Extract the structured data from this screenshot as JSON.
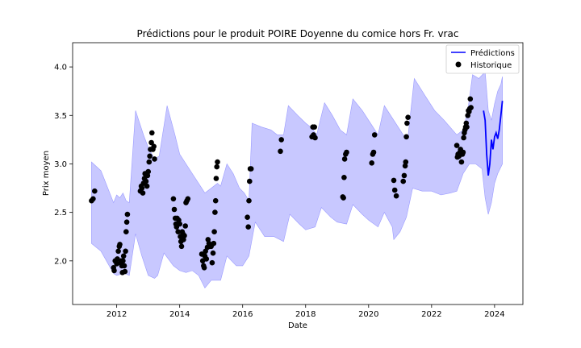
{
  "chart_data": {
    "type": "line",
    "title": "Prédictions pour le produit POIRE Doyenne du comice hors Fr. vrac",
    "xlabel": "Date",
    "ylabel": "Prix moyen",
    "xlim": [
      2010.6,
      2024.9
    ],
    "ylim": [
      1.55,
      4.25
    ],
    "x_ticks": [
      2012,
      2014,
      2016,
      2018,
      2020,
      2022,
      2024
    ],
    "y_ticks": [
      2.0,
      2.5,
      3.0,
      3.5,
      4.0
    ],
    "legend_position": "top-right",
    "colors": {
      "prediction": "#0000ff",
      "band": "#c8c8ff",
      "band_edge": "#9a9aff",
      "historique": "#000000"
    },
    "series": [
      {
        "name": "Prédictions",
        "kind": "line",
        "points": [
          [
            2023.65,
            3.55
          ],
          [
            2023.7,
            3.45
          ],
          [
            2023.75,
            3.1
          ],
          [
            2023.8,
            2.88
          ],
          [
            2023.85,
            3.0
          ],
          [
            2023.9,
            3.25
          ],
          [
            2023.95,
            3.15
          ],
          [
            2024.0,
            3.28
          ],
          [
            2024.05,
            3.32
          ],
          [
            2024.1,
            3.26
          ],
          [
            2024.15,
            3.35
          ],
          [
            2024.2,
            3.5
          ],
          [
            2024.25,
            3.65
          ]
        ]
      },
      {
        "name": "Historique",
        "kind": "scatter",
        "points": [
          [
            2011.2,
            2.62
          ],
          [
            2011.25,
            2.64
          ],
          [
            2011.3,
            2.72
          ],
          [
            2011.9,
            1.93
          ],
          [
            2011.92,
            1.9
          ],
          [
            2011.95,
            2.0
          ],
          [
            2012.0,
            1.97
          ],
          [
            2012.02,
            2.02
          ],
          [
            2012.05,
            2.1
          ],
          [
            2012.08,
            2.15
          ],
          [
            2012.1,
            2.17
          ],
          [
            2012.12,
            1.98
          ],
          [
            2012.14,
            2.0
          ],
          [
            2012.16,
            1.95
          ],
          [
            2012.18,
            1.88
          ],
          [
            2012.2,
            2.0
          ],
          [
            2012.22,
            2.05
          ],
          [
            2012.24,
            1.95
          ],
          [
            2012.26,
            1.89
          ],
          [
            2012.28,
            2.1
          ],
          [
            2012.3,
            2.3
          ],
          [
            2012.32,
            2.4
          ],
          [
            2012.34,
            2.48
          ],
          [
            2012.75,
            2.72
          ],
          [
            2012.78,
            2.77
          ],
          [
            2012.8,
            2.75
          ],
          [
            2012.83,
            2.7
          ],
          [
            2012.85,
            2.8
          ],
          [
            2012.88,
            2.85
          ],
          [
            2012.9,
            2.9
          ],
          [
            2012.93,
            2.82
          ],
          [
            2012.96,
            2.77
          ],
          [
            2012.98,
            2.88
          ],
          [
            2013.0,
            2.92
          ],
          [
            2013.03,
            3.02
          ],
          [
            2013.05,
            3.08
          ],
          [
            2013.07,
            3.15
          ],
          [
            2013.1,
            3.22
          ],
          [
            2013.12,
            3.32
          ],
          [
            2013.15,
            3.15
          ],
          [
            2013.18,
            3.18
          ],
          [
            2013.2,
            3.05
          ],
          [
            2013.8,
            2.64
          ],
          [
            2013.83,
            2.53
          ],
          [
            2013.86,
            2.44
          ],
          [
            2013.88,
            2.38
          ],
          [
            2013.9,
            2.35
          ],
          [
            2013.92,
            2.44
          ],
          [
            2013.95,
            2.3
          ],
          [
            2013.97,
            2.42
          ],
          [
            2014.0,
            2.38
          ],
          [
            2014.02,
            2.25
          ],
          [
            2014.04,
            2.2
          ],
          [
            2014.06,
            2.15
          ],
          [
            2014.08,
            2.3
          ],
          [
            2014.1,
            2.28
          ],
          [
            2014.12,
            2.22
          ],
          [
            2014.15,
            2.26
          ],
          [
            2014.18,
            2.36
          ],
          [
            2014.2,
            2.6
          ],
          [
            2014.23,
            2.62
          ],
          [
            2014.26,
            2.64
          ],
          [
            2014.7,
            2.07
          ],
          [
            2014.73,
            2.0
          ],
          [
            2014.76,
            1.95
          ],
          [
            2014.78,
            1.93
          ],
          [
            2014.8,
            2.05
          ],
          [
            2014.82,
            2.1
          ],
          [
            2014.85,
            2.02
          ],
          [
            2014.88,
            2.14
          ],
          [
            2014.9,
            2.22
          ],
          [
            2014.93,
            2.18
          ],
          [
            2014.96,
            2.15
          ],
          [
            2015.0,
            2.15
          ],
          [
            2015.03,
            1.98
          ],
          [
            2015.06,
            2.08
          ],
          [
            2015.08,
            2.18
          ],
          [
            2015.12,
            2.5
          ],
          [
            2015.14,
            2.62
          ],
          [
            2015.16,
            2.85
          ],
          [
            2015.18,
            2.97
          ],
          [
            2015.2,
            3.02
          ],
          [
            2015.1,
            2.3
          ],
          [
            2016.15,
            2.45
          ],
          [
            2016.18,
            2.35
          ],
          [
            2016.2,
            2.62
          ],
          [
            2016.22,
            2.82
          ],
          [
            2016.24,
            2.95
          ],
          [
            2016.27,
            2.95
          ],
          [
            2017.2,
            3.13
          ],
          [
            2017.23,
            3.25
          ],
          [
            2018.2,
            3.28
          ],
          [
            2018.23,
            3.38
          ],
          [
            2018.25,
            3.3
          ],
          [
            2018.28,
            3.38
          ],
          [
            2018.3,
            3.27
          ],
          [
            2019.18,
            2.66
          ],
          [
            2019.2,
            2.65
          ],
          [
            2019.22,
            2.86
          ],
          [
            2019.24,
            3.05
          ],
          [
            2019.27,
            3.1
          ],
          [
            2019.3,
            3.12
          ],
          [
            2020.1,
            3.01
          ],
          [
            2020.13,
            3.1
          ],
          [
            2020.16,
            3.12
          ],
          [
            2020.19,
            3.3
          ],
          [
            2020.8,
            2.83
          ],
          [
            2020.83,
            2.73
          ],
          [
            2020.88,
            2.67
          ],
          [
            2021.1,
            2.82
          ],
          [
            2021.13,
            2.88
          ],
          [
            2021.16,
            2.98
          ],
          [
            2021.18,
            3.02
          ],
          [
            2021.2,
            3.28
          ],
          [
            2021.22,
            3.42
          ],
          [
            2021.25,
            3.48
          ],
          [
            2022.8,
            3.19
          ],
          [
            2022.82,
            3.07
          ],
          [
            2022.84,
            3.1
          ],
          [
            2022.87,
            3.08
          ],
          [
            2022.9,
            3.12
          ],
          [
            2022.92,
            3.15
          ],
          [
            2022.95,
            3.02
          ],
          [
            2022.98,
            3.1
          ],
          [
            2023.0,
            3.12
          ],
          [
            2023.02,
            3.27
          ],
          [
            2023.04,
            3.32
          ],
          [
            2023.06,
            3.35
          ],
          [
            2023.08,
            3.38
          ],
          [
            2023.1,
            3.42
          ],
          [
            2023.12,
            3.38
          ],
          [
            2023.15,
            3.5
          ],
          [
            2023.17,
            3.55
          ],
          [
            2023.19,
            3.54
          ],
          [
            2023.21,
            3.57
          ],
          [
            2023.23,
            3.67
          ],
          [
            2023.25,
            3.58
          ]
        ]
      }
    ],
    "band": {
      "upper": [
        [
          2011.2,
          3.02
        ],
        [
          2011.5,
          2.93
        ],
        [
          2011.9,
          2.6
        ],
        [
          2012.0,
          2.68
        ],
        [
          2012.1,
          2.65
        ],
        [
          2012.2,
          2.7
        ],
        [
          2012.3,
          2.62
        ],
        [
          2012.4,
          2.6
        ],
        [
          2012.6,
          3.55
        ],
        [
          2012.85,
          3.3
        ],
        [
          2013.0,
          3.17
        ],
        [
          2013.2,
          3.05
        ],
        [
          2013.35,
          3.08
        ],
        [
          2013.6,
          3.6
        ],
        [
          2013.85,
          3.3
        ],
        [
          2014.0,
          3.1
        ],
        [
          2014.3,
          2.95
        ],
        [
          2014.5,
          2.85
        ],
        [
          2014.8,
          2.7
        ],
        [
          2015.0,
          2.75
        ],
        [
          2015.2,
          2.8
        ],
        [
          2015.3,
          2.77
        ],
        [
          2015.5,
          3.0
        ],
        [
          2015.7,
          2.9
        ],
        [
          2015.9,
          2.75
        ],
        [
          2016.05,
          2.7
        ],
        [
          2016.2,
          2.62
        ],
        [
          2016.3,
          3.42
        ],
        [
          2016.6,
          3.38
        ],
        [
          2016.9,
          3.35
        ],
        [
          2017.1,
          3.3
        ],
        [
          2017.3,
          3.3
        ],
        [
          2017.45,
          3.6
        ],
        [
          2017.75,
          3.5
        ],
        [
          2018.0,
          3.42
        ],
        [
          2018.2,
          3.37
        ],
        [
          2018.35,
          3.3
        ],
        [
          2018.6,
          3.63
        ],
        [
          2018.85,
          3.5
        ],
        [
          2019.1,
          3.35
        ],
        [
          2019.3,
          3.3
        ],
        [
          2019.5,
          3.67
        ],
        [
          2019.8,
          3.55
        ],
        [
          2020.1,
          3.4
        ],
        [
          2020.3,
          3.3
        ],
        [
          2020.5,
          3.6
        ],
        [
          2020.8,
          3.45
        ],
        [
          2021.1,
          3.3
        ],
        [
          2021.25,
          3.28
        ],
        [
          2021.45,
          3.88
        ],
        [
          2021.8,
          3.7
        ],
        [
          2022.1,
          3.55
        ],
        [
          2022.4,
          3.45
        ],
        [
          2022.8,
          3.3
        ],
        [
          2023.0,
          3.35
        ],
        [
          2023.15,
          3.55
        ],
        [
          2023.3,
          3.92
        ],
        [
          2023.5,
          3.88
        ],
        [
          2023.7,
          3.95
        ],
        [
          2023.8,
          3.55
        ],
        [
          2023.9,
          3.45
        ],
        [
          2024.0,
          3.62
        ],
        [
          2024.1,
          3.75
        ],
        [
          2024.2,
          3.82
        ],
        [
          2024.25,
          3.9
        ]
      ],
      "lower": [
        [
          2011.2,
          2.18
        ],
        [
          2011.5,
          2.1
        ],
        [
          2011.9,
          1.87
        ],
        [
          2012.0,
          1.85
        ],
        [
          2012.1,
          1.86
        ],
        [
          2012.2,
          1.88
        ],
        [
          2012.4,
          1.85
        ],
        [
          2012.6,
          2.28
        ],
        [
          2012.8,
          2.05
        ],
        [
          2013.0,
          1.85
        ],
        [
          2013.2,
          1.82
        ],
        [
          2013.3,
          1.85
        ],
        [
          2013.5,
          2.08
        ],
        [
          2013.8,
          1.95
        ],
        [
          2014.0,
          1.9
        ],
        [
          2014.2,
          1.88
        ],
        [
          2014.4,
          1.9
        ],
        [
          2014.6,
          1.85
        ],
        [
          2014.8,
          1.72
        ],
        [
          2015.0,
          1.8
        ],
        [
          2015.3,
          1.8
        ],
        [
          2015.5,
          2.05
        ],
        [
          2015.8,
          1.95
        ],
        [
          2016.0,
          1.95
        ],
        [
          2016.2,
          2.05
        ],
        [
          2016.4,
          2.4
        ],
        [
          2016.7,
          2.25
        ],
        [
          2017.0,
          2.25
        ],
        [
          2017.3,
          2.2
        ],
        [
          2017.5,
          2.48
        ],
        [
          2017.8,
          2.38
        ],
        [
          2018.0,
          2.32
        ],
        [
          2018.3,
          2.35
        ],
        [
          2018.5,
          2.55
        ],
        [
          2018.8,
          2.45
        ],
        [
          2019.0,
          2.4
        ],
        [
          2019.3,
          2.38
        ],
        [
          2019.5,
          2.58
        ],
        [
          2019.8,
          2.48
        ],
        [
          2020.0,
          2.42
        ],
        [
          2020.3,
          2.35
        ],
        [
          2020.5,
          2.5
        ],
        [
          2020.75,
          2.35
        ],
        [
          2020.8,
          2.22
        ],
        [
          2021.0,
          2.3
        ],
        [
          2021.2,
          2.45
        ],
        [
          2021.4,
          2.75
        ],
        [
          2021.7,
          2.72
        ],
        [
          2022.0,
          2.72
        ],
        [
          2022.3,
          2.68
        ],
        [
          2022.6,
          2.7
        ],
        [
          2022.8,
          2.72
        ],
        [
          2023.0,
          2.9
        ],
        [
          2023.2,
          3.0
        ],
        [
          2023.4,
          3.0
        ],
        [
          2023.6,
          2.95
        ],
        [
          2023.7,
          2.65
        ],
        [
          2023.8,
          2.48
        ],
        [
          2023.9,
          2.6
        ],
        [
          2024.0,
          2.8
        ],
        [
          2024.1,
          2.9
        ],
        [
          2024.25,
          3.0
        ]
      ]
    }
  }
}
